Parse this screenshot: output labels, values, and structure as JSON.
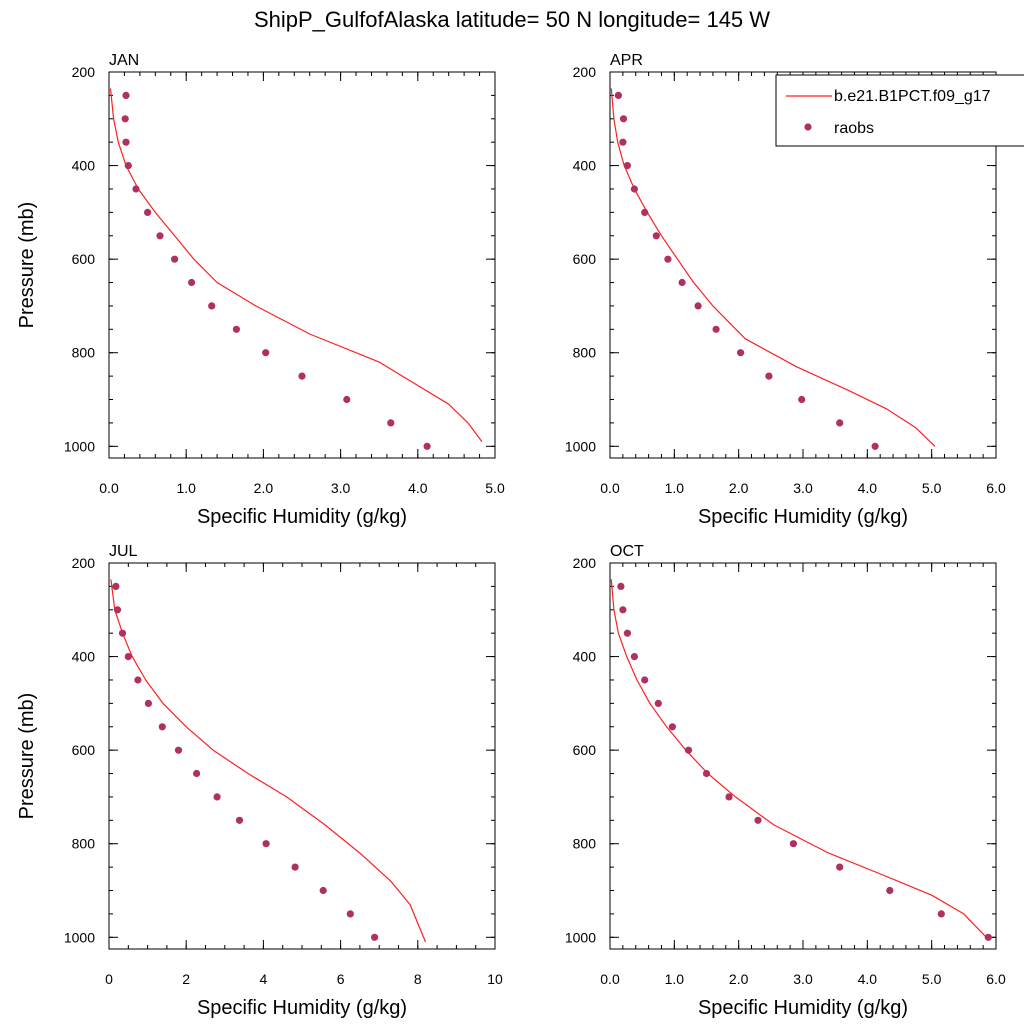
{
  "title": "ShipP_GulfofAlaska  latitude= 50 N longitude= 145 W",
  "legend": {
    "model_label": "b.e21.B1PCT.f09_g17",
    "obs_label": "raobs",
    "model_color": "#ff2020",
    "obs_color": "#b03060",
    "placement": "top-right"
  },
  "chart_data": [
    {
      "type": "line",
      "panel": "JAN",
      "xlabel": "Specific Humidity (g/kg)",
      "ylabel": "Pressure (mb)",
      "xlim": [
        0,
        5
      ],
      "ylim": [
        1025,
        200
      ],
      "xticks": [
        0,
        1,
        2,
        3,
        4,
        5
      ],
      "xticklabels": [
        "0.0",
        "1.0",
        "2.0",
        "3.0",
        "4.0",
        "5.0"
      ],
      "xminor": 0.2,
      "yticks": [
        200,
        400,
        600,
        800,
        1000
      ],
      "yticklabels": [
        "200",
        "400",
        "600",
        "800",
        "1000"
      ],
      "yminor": 50,
      "series": [
        {
          "name": "b.e21.B1PCT.f09_g17",
          "style": "line",
          "x": [
            0.02,
            0.06,
            0.12,
            0.22,
            0.38,
            0.6,
            0.85,
            1.1,
            1.4,
            1.9,
            2.6,
            3.5,
            4.0,
            4.4,
            4.65,
            4.83
          ],
          "y": [
            235,
            300,
            350,
            400,
            450,
            500,
            550,
            600,
            650,
            700,
            760,
            820,
            870,
            910,
            950,
            990
          ]
        },
        {
          "name": "raobs",
          "style": "marker",
          "x": [
            0.22,
            0.21,
            0.22,
            0.25,
            0.35,
            0.5,
            0.66,
            0.85,
            1.07,
            1.33,
            1.65,
            2.03,
            2.5,
            3.08,
            3.65,
            4.12
          ],
          "y": [
            250,
            300,
            350,
            400,
            450,
            500,
            550,
            600,
            650,
            700,
            750,
            800,
            850,
            900,
            950,
            1000
          ]
        }
      ]
    },
    {
      "type": "line",
      "panel": "APR",
      "xlabel": "Specific Humidity (g/kg)",
      "ylabel": "",
      "xlim": [
        0,
        6
      ],
      "ylim": [
        1025,
        200
      ],
      "xticks": [
        0,
        1,
        2,
        3,
        4,
        5,
        6
      ],
      "xticklabels": [
        "0.0",
        "1.0",
        "2.0",
        "3.0",
        "4.0",
        "5.0",
        "6.0"
      ],
      "xminor": 0.2,
      "yticks": [
        200,
        400,
        600,
        800,
        1000
      ],
      "yticklabels": [
        "200",
        "400",
        "600",
        "800",
        "1000"
      ],
      "yminor": 50,
      "series": [
        {
          "name": "b.e21.B1PCT.f09_g17",
          "style": "line",
          "x": [
            0.02,
            0.06,
            0.12,
            0.22,
            0.38,
            0.58,
            0.8,
            1.05,
            1.3,
            1.6,
            2.1,
            2.9,
            3.7,
            4.3,
            4.75,
            5.05
          ],
          "y": [
            235,
            300,
            350,
            400,
            450,
            500,
            550,
            600,
            650,
            700,
            770,
            830,
            880,
            920,
            960,
            1000
          ]
        },
        {
          "name": "raobs",
          "style": "marker",
          "x": [
            0.13,
            0.21,
            0.2,
            0.27,
            0.38,
            0.54,
            0.72,
            0.9,
            1.12,
            1.37,
            1.65,
            2.03,
            2.47,
            2.98,
            3.57,
            4.12
          ],
          "y": [
            250,
            300,
            350,
            400,
            450,
            500,
            550,
            600,
            650,
            700,
            750,
            800,
            850,
            900,
            950,
            1000
          ]
        }
      ]
    },
    {
      "type": "line",
      "panel": "JUL",
      "xlabel": "Specific Humidity (g/kg)",
      "ylabel": "Pressure (mb)",
      "xlim": [
        0,
        10
      ],
      "ylim": [
        1025,
        200
      ],
      "xticks": [
        0,
        2,
        4,
        6,
        8,
        10
      ],
      "xticklabels": [
        "0",
        "2",
        "4",
        "6",
        "8",
        "10"
      ],
      "xminor": 0.5,
      "yticks": [
        200,
        400,
        600,
        800,
        1000
      ],
      "yticklabels": [
        "200",
        "400",
        "600",
        "800",
        "1000"
      ],
      "yminor": 50,
      "series": [
        {
          "name": "b.e21.B1PCT.f09_g17",
          "style": "line",
          "x": [
            0.05,
            0.15,
            0.35,
            0.6,
            0.95,
            1.4,
            2.0,
            2.7,
            3.6,
            4.6,
            5.6,
            6.5,
            7.3,
            7.8,
            8.2
          ],
          "y": [
            235,
            300,
            350,
            400,
            450,
            500,
            550,
            600,
            650,
            700,
            760,
            820,
            880,
            930,
            1010
          ]
        },
        {
          "name": "raobs",
          "style": "marker",
          "x": [
            0.18,
            0.22,
            0.35,
            0.5,
            0.75,
            1.02,
            1.38,
            1.8,
            2.27,
            2.8,
            3.38,
            4.07,
            4.82,
            5.55,
            6.25,
            6.88
          ],
          "y": [
            250,
            300,
            350,
            400,
            450,
            500,
            550,
            600,
            650,
            700,
            750,
            800,
            850,
            900,
            950,
            1000
          ]
        }
      ]
    },
    {
      "type": "line",
      "panel": "OCT",
      "xlabel": "Specific Humidity (g/kg)",
      "ylabel": "",
      "xlim": [
        0,
        6
      ],
      "ylim": [
        1025,
        200
      ],
      "xticks": [
        0,
        1,
        2,
        3,
        4,
        5,
        6
      ],
      "xticklabels": [
        "0.0",
        "1.0",
        "2.0",
        "3.0",
        "4.0",
        "5.0",
        "6.0"
      ],
      "xminor": 0.2,
      "yticks": [
        200,
        400,
        600,
        800,
        1000
      ],
      "yticklabels": [
        "200",
        "400",
        "600",
        "800",
        "1000"
      ],
      "yminor": 50,
      "series": [
        {
          "name": "b.e21.B1PCT.f09_g17",
          "style": "line",
          "x": [
            0.02,
            0.06,
            0.13,
            0.26,
            0.42,
            0.62,
            0.88,
            1.18,
            1.52,
            1.95,
            2.55,
            3.4,
            4.3,
            5.0,
            5.5,
            5.85
          ],
          "y": [
            235,
            300,
            350,
            400,
            450,
            500,
            550,
            600,
            650,
            700,
            760,
            820,
            870,
            910,
            950,
            1000
          ]
        },
        {
          "name": "raobs",
          "style": "marker",
          "x": [
            0.17,
            0.2,
            0.27,
            0.38,
            0.54,
            0.75,
            0.97,
            1.22,
            1.5,
            1.85,
            2.3,
            2.85,
            3.57,
            4.35,
            5.15,
            5.88
          ],
          "y": [
            250,
            300,
            350,
            400,
            450,
            500,
            550,
            600,
            650,
            700,
            750,
            800,
            850,
            900,
            950,
            1000
          ]
        }
      ]
    }
  ]
}
